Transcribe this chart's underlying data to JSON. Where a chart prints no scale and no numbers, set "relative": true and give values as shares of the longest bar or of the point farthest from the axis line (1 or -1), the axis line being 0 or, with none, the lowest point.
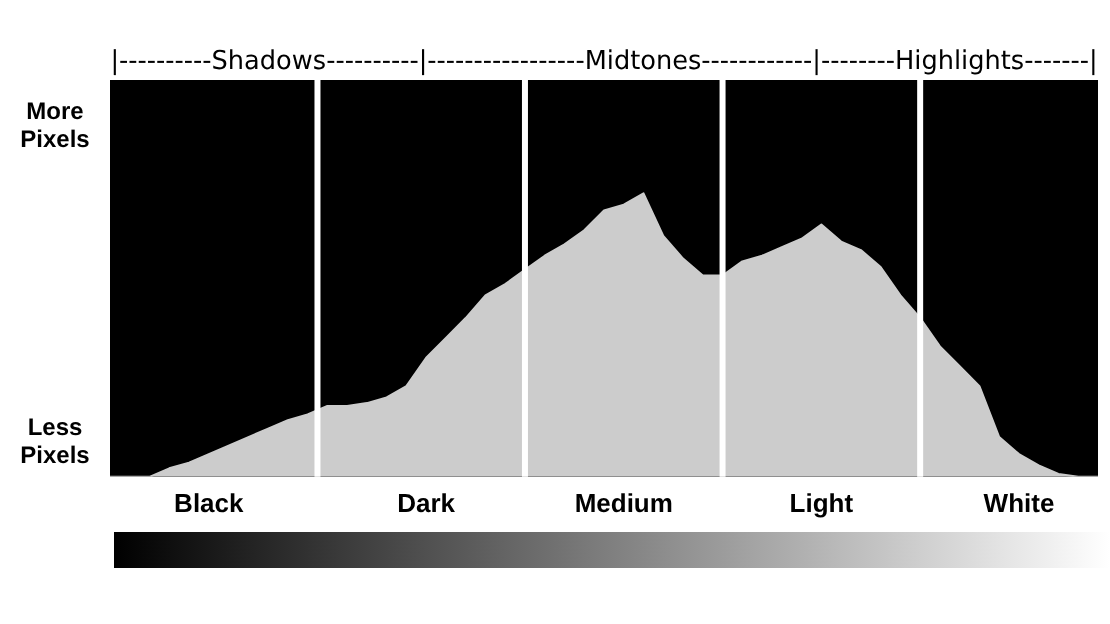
{
  "chart_data": {
    "type": "area",
    "relative": true,
    "categories": [
      null,
      null,
      null,
      null,
      null,
      "Black",
      null,
      null,
      null,
      null,
      null,
      null,
      null,
      null,
      null,
      null,
      "Dark",
      null,
      null,
      null,
      null,
      null,
      null,
      null,
      null,
      null,
      "Medium",
      null,
      null,
      null,
      null,
      null,
      null,
      null,
      null,
      null,
      "Light",
      null,
      null,
      null,
      null,
      null,
      null,
      null,
      null,
      null,
      "White",
      null,
      null,
      null,
      null
    ],
    "values": [
      0,
      0,
      0,
      0.03,
      0.05,
      0.08,
      0.11,
      0.14,
      0.17,
      0.2,
      0.22,
      0.25,
      0.25,
      0.26,
      0.28,
      0.32,
      0.42,
      0.49,
      0.56,
      0.64,
      0.68,
      0.73,
      0.78,
      0.82,
      0.87,
      0.94,
      0.96,
      1,
      0.85,
      0.77,
      0.71,
      0.71,
      0.76,
      0.78,
      0.81,
      0.84,
      0.89,
      0.83,
      0.8,
      0.74,
      0.64,
      0.56,
      0.46,
      0.39,
      0.32,
      0.14,
      0.08,
      0.04,
      0.01,
      0,
      0
    ],
    "color": "#cccccc",
    "annotations": [
      "|----------Shadows----------|-----------------Midtones------------|--------Highlights-------|",
      "More Pixels",
      "Less Pixels"
    ],
    "grid": "x",
    "legend": false
  }
}
